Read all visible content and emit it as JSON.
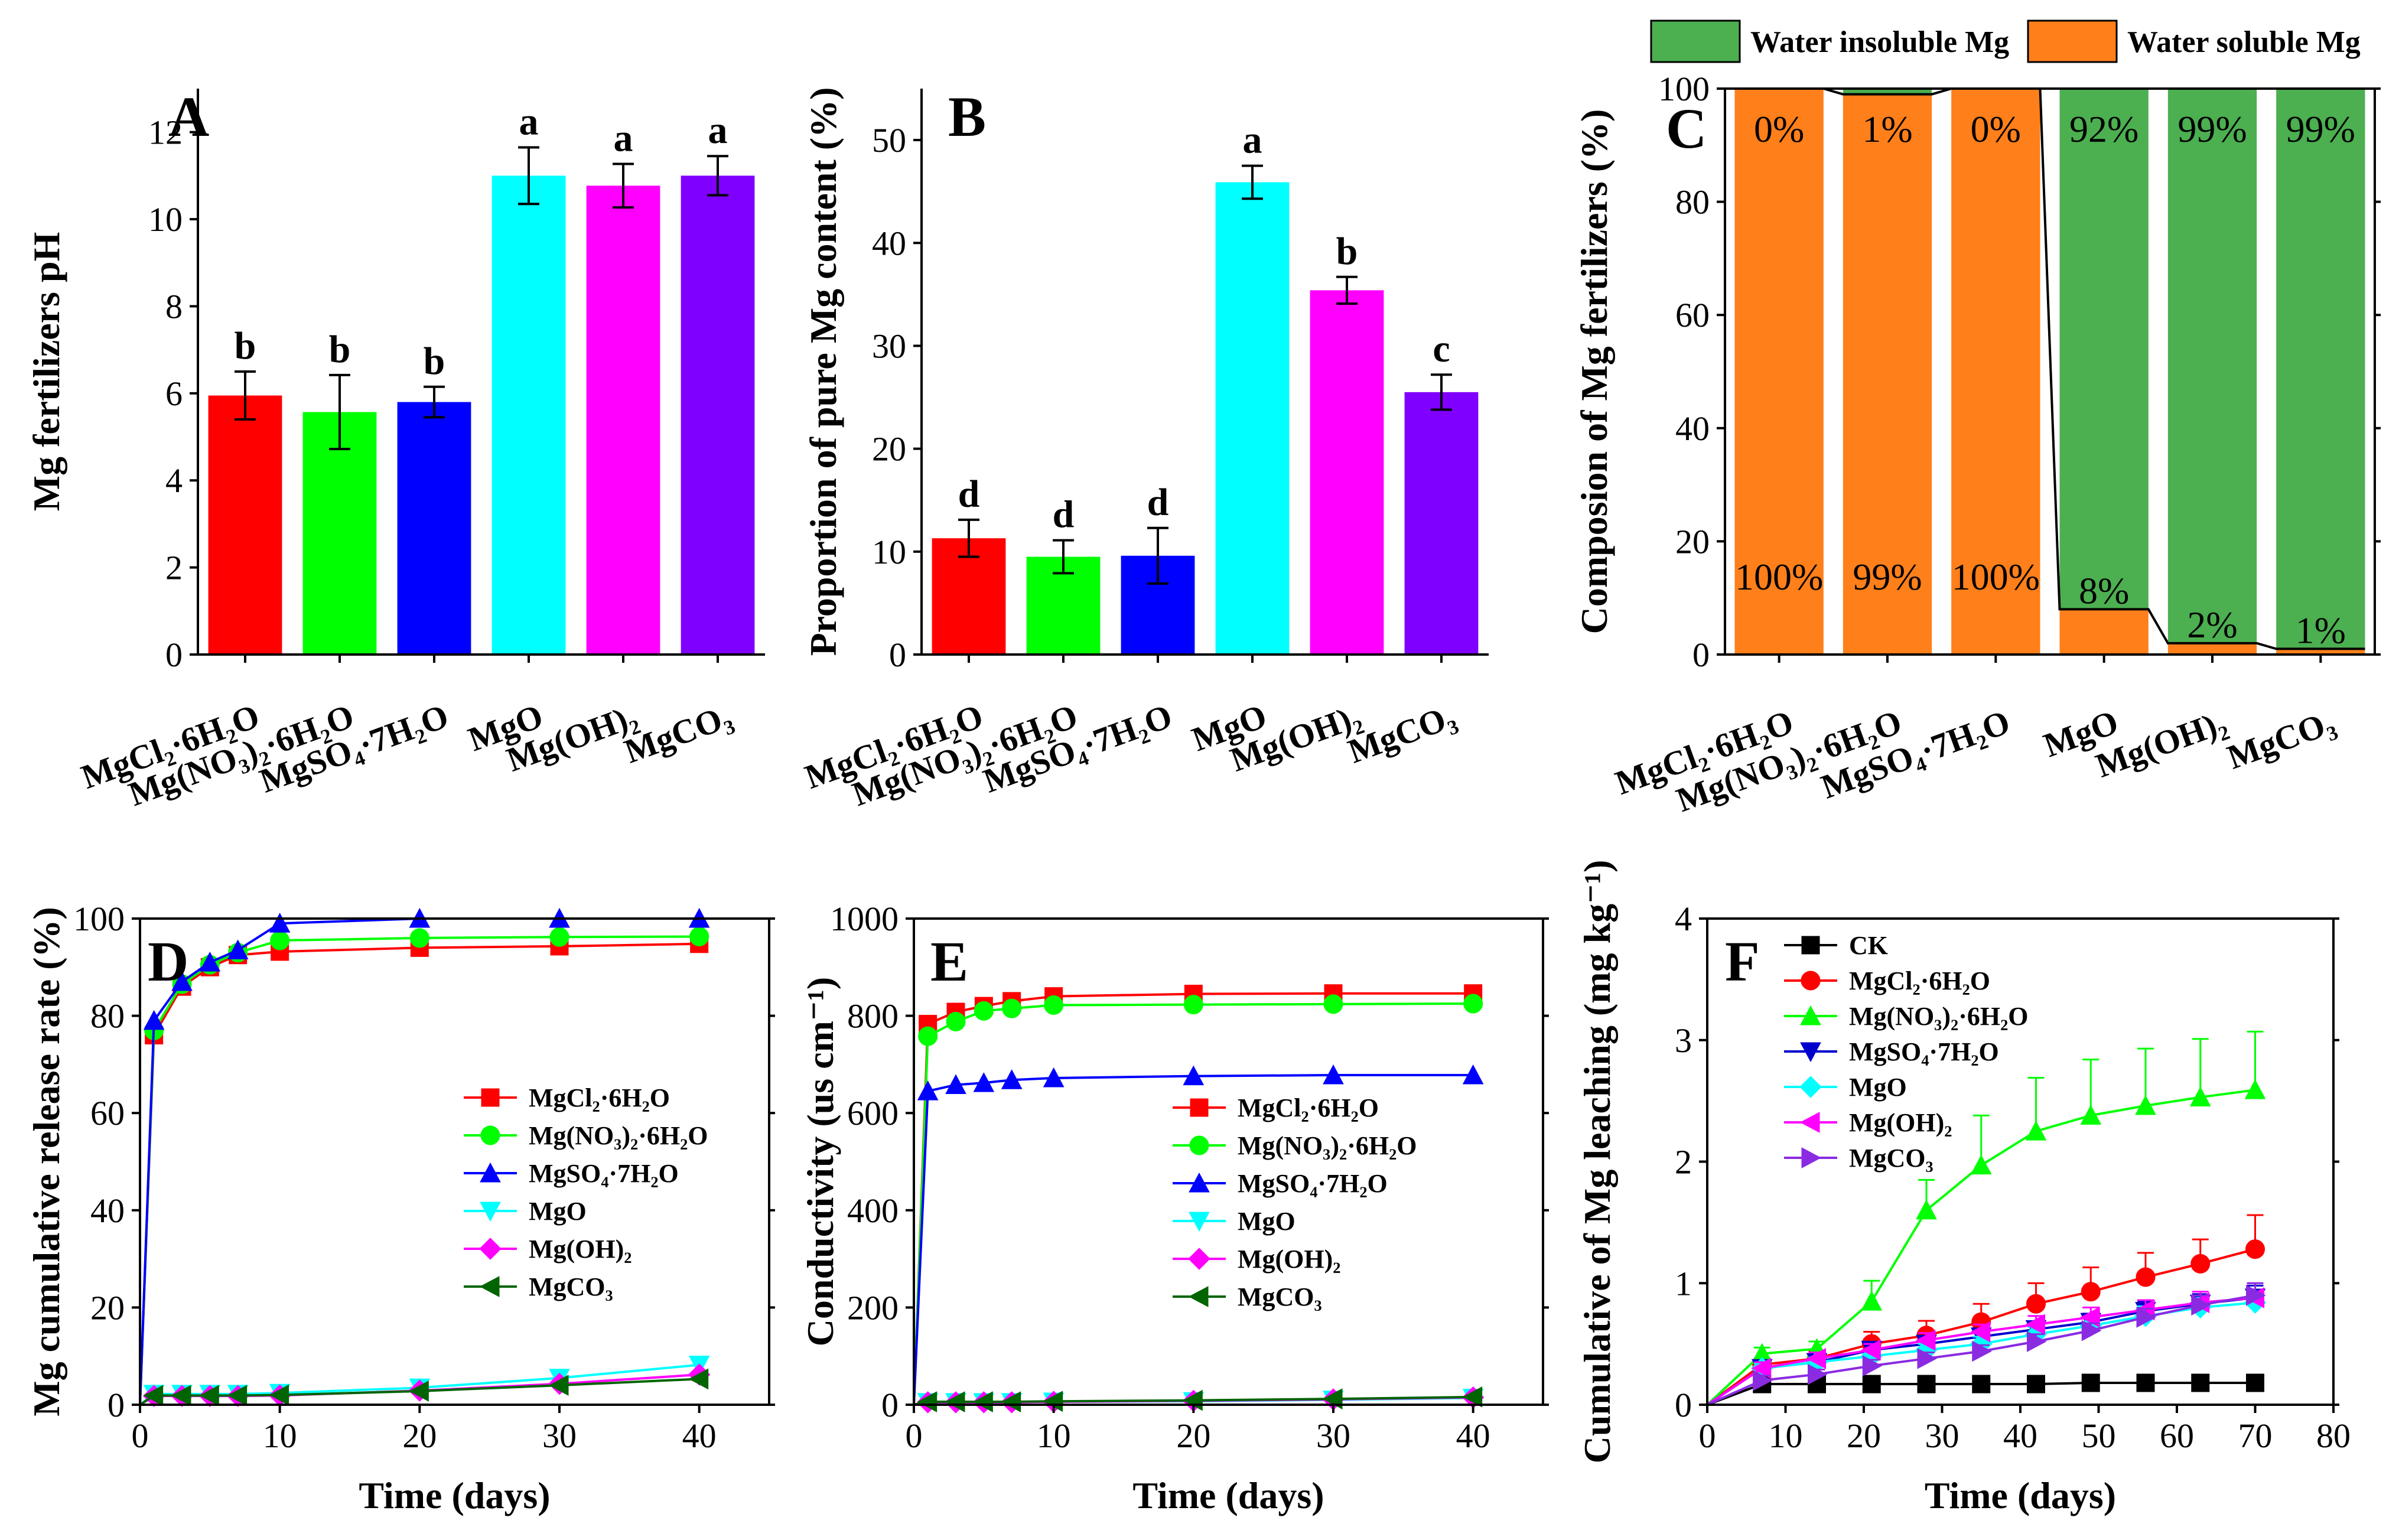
{
  "figure": {
    "legend_top": [
      "Water insoluble Mg",
      "Water soluble Mg"
    ],
    "colors": {
      "MgCl2": "#ff0000",
      "MgNO3": "#00ff00",
      "MgSO4": "#0000ff",
      "MgO": "#00ffff",
      "MgOH2": "#ff00ff",
      "MgCO3": "#8000ff",
      "CK": "#000000",
      "insoluble": "#4caf50",
      "soluble": "#ff7f1a"
    }
  },
  "chart_data": [
    {
      "panel": "A",
      "type": "bar",
      "categories": [
        "MgCl₂·6H₂O",
        "Mg(NO₃)₂·6H₂O",
        "MgSO₄·7H₂O",
        "MgO",
        "Mg(OH)₂",
        "MgCO₃"
      ],
      "values": [
        5.95,
        5.57,
        5.8,
        11.0,
        10.77,
        11.0
      ],
      "errors": [
        0.55,
        0.85,
        0.35,
        0.65,
        0.5,
        0.45
      ],
      "letters": [
        "b",
        "b",
        "b",
        "a",
        "a",
        "a"
      ],
      "ylabel": "Mg fertilizers pH",
      "ylim": [
        0,
        13
      ],
      "yticks": [
        0,
        2,
        4,
        6,
        8,
        10,
        12
      ]
    },
    {
      "panel": "B",
      "type": "bar",
      "categories": [
        "MgCl₂·6H₂O",
        "Mg(NO₃)₂·6H₂O",
        "MgSO₄·7H₂O",
        "MgO",
        "Mg(OH)₂",
        "MgCO₃"
      ],
      "values": [
        11.3,
        9.5,
        9.6,
        45.9,
        35.4,
        25.5
      ],
      "errors": [
        1.8,
        1.6,
        2.7,
        1.6,
        1.3,
        1.7
      ],
      "letters": [
        "d",
        "d",
        "d",
        "a",
        "b",
        "c"
      ],
      "ylabel": "Proportion  of pure Mg content (%)",
      "ylim": [
        0,
        55
      ],
      "yticks": [
        0,
        10,
        20,
        30,
        40,
        50
      ]
    },
    {
      "panel": "C",
      "type": "bar",
      "stacked": true,
      "categories": [
        "MgCl₂·6H₂O",
        "Mg(NO₃)₂·6H₂O",
        "MgSO₄·7H₂O",
        "MgO",
        "Mg(OH)₂",
        "MgCO₃"
      ],
      "series": [
        {
          "name": "Water soluble Mg",
          "values": [
            100,
            99,
            100,
            8,
            2,
            1
          ]
        },
        {
          "name": "Water insoluble Mg",
          "values": [
            0,
            1,
            0,
            92,
            99,
            99
          ]
        }
      ],
      "soluble_labels": [
        "100%",
        "99%",
        "100%",
        "8%",
        "2%",
        "1%"
      ],
      "insoluble_labels": [
        "0%",
        "1%",
        "0%",
        "92%",
        "99%",
        "99%"
      ],
      "ylabel": "Composion of Mg fertilizers (%)",
      "ylim": [
        0,
        100
      ],
      "yticks": [
        0,
        20,
        40,
        60,
        80,
        100
      ]
    },
    {
      "panel": "D",
      "type": "line",
      "xlabel": "Time (days)",
      "ylabel": "Mg cumulative release rate (%)",
      "xlim": [
        0,
        45
      ],
      "ylim": [
        0,
        100
      ],
      "xticks": [
        0,
        10,
        20,
        30,
        40
      ],
      "yticks": [
        0,
        20,
        40,
        60,
        80,
        100
      ],
      "x": [
        0,
        1,
        3,
        5,
        7,
        10,
        20,
        30,
        40
      ],
      "series": [
        {
          "name": "MgCl₂·6H₂O",
          "values": [
            0,
            76,
            86,
            90,
            92.5,
            93.2,
            94,
            94.3,
            94.8
          ]
        },
        {
          "name": "Mg(NO₃)₂·6H₂O",
          "values": [
            0,
            77,
            86.5,
            90.5,
            93,
            95.5,
            96,
            96.2,
            96.3
          ]
        },
        {
          "name": "MgSO₄·7H₂O",
          "values": [
            0,
            79,
            87,
            91,
            93.5,
            99,
            100,
            100,
            100
          ]
        },
        {
          "name": "MgO",
          "values": [
            0,
            2.2,
            2.2,
            2.2,
            2.2,
            2.4,
            3.5,
            5.5,
            8.2
          ]
        },
        {
          "name": "Mg(OH)₂",
          "values": [
            0,
            1.8,
            1.8,
            1.8,
            1.8,
            1.9,
            2.9,
            4.3,
            6.2
          ]
        },
        {
          "name": "MgCO₃",
          "values": [
            0,
            1.9,
            1.9,
            1.9,
            1.9,
            2.0,
            2.8,
            4.0,
            5.3
          ]
        }
      ]
    },
    {
      "panel": "E",
      "type": "line",
      "xlabel": "Time (days)",
      "ylabel": "Conductivity (us cm⁻¹)",
      "xlim": [
        0,
        45
      ],
      "ylim": [
        0,
        1000
      ],
      "xticks": [
        0,
        10,
        20,
        30,
        40
      ],
      "yticks": [
        0,
        200,
        400,
        600,
        800,
        1000
      ],
      "x": [
        0,
        1,
        3,
        5,
        7,
        10,
        20,
        30,
        40
      ],
      "series": [
        {
          "name": "MgCl₂·6H₂O",
          "values": [
            0,
            783,
            808,
            820,
            830,
            840,
            845,
            846,
            846
          ]
        },
        {
          "name": "Mg(NO₃)₂·6H₂O",
          "values": [
            0,
            758,
            788,
            810,
            815,
            822,
            823,
            824,
            825
          ]
        },
        {
          "name": "MgSO₄·7H₂O",
          "values": [
            0,
            645,
            658,
            662,
            668,
            672,
            676,
            678,
            678
          ]
        },
        {
          "name": "MgO",
          "values": [
            0,
            5,
            5,
            5,
            5,
            6,
            7,
            10,
            14
          ]
        },
        {
          "name": "Mg(OH)₂",
          "values": [
            0,
            5,
            5,
            5,
            5,
            6,
            8,
            11,
            15
          ]
        },
        {
          "name": "MgCO₃",
          "values": [
            0,
            6,
            6,
            6,
            6,
            7,
            9,
            12,
            16
          ]
        }
      ]
    },
    {
      "panel": "F",
      "type": "line",
      "xlabel": "Time (days)",
      "ylabel": "Cumulative of Mg leaching (mg kg⁻¹)",
      "xlim": [
        0,
        80
      ],
      "ylim": [
        0,
        4
      ],
      "xticks": [
        0,
        10,
        20,
        30,
        40,
        50,
        60,
        70,
        80
      ],
      "yticks": [
        0,
        1,
        2,
        3,
        4
      ],
      "x": [
        0,
        7,
        14,
        21,
        28,
        35,
        42,
        49,
        56,
        63,
        70
      ],
      "series": [
        {
          "name": "CK",
          "values": [
            0,
            0.17,
            0.17,
            0.17,
            0.17,
            0.17,
            0.17,
            0.18,
            0.18,
            0.18,
            0.18
          ],
          "errors": [
            0,
            0.02,
            0.02,
            0.02,
            0.02,
            0.02,
            0.02,
            0.02,
            0.02,
            0.02,
            0.02
          ]
        },
        {
          "name": "MgCl₂·6H₂O",
          "values": [
            0,
            0.33,
            0.38,
            0.5,
            0.57,
            0.68,
            0.83,
            0.93,
            1.05,
            1.16,
            1.28
          ],
          "errors": [
            0,
            0.05,
            0.06,
            0.1,
            0.12,
            0.15,
            0.17,
            0.2,
            0.2,
            0.2,
            0.28
          ]
        },
        {
          "name": "Mg(NO₃)₂·6H₂O",
          "values": [
            0,
            0.42,
            0.46,
            0.85,
            1.6,
            1.97,
            2.25,
            2.38,
            2.46,
            2.53,
            2.59
          ],
          "errors": [
            0,
            0.05,
            0.06,
            0.17,
            0.25,
            0.41,
            0.44,
            0.46,
            0.47,
            0.48,
            0.48
          ]
        },
        {
          "name": "MgSO₄·7H₂O",
          "values": [
            0,
            0.3,
            0.35,
            0.45,
            0.5,
            0.56,
            0.62,
            0.68,
            0.77,
            0.83,
            0.88
          ],
          "errors": [
            0,
            0.04,
            0.05,
            0.05,
            0.05,
            0.06,
            0.06,
            0.07,
            0.08,
            0.08,
            0.1
          ]
        },
        {
          "name": "MgO",
          "values": [
            0,
            0.3,
            0.35,
            0.4,
            0.45,
            0.5,
            0.58,
            0.65,
            0.73,
            0.8,
            0.84
          ],
          "errors": [
            0,
            0.04,
            0.04,
            0.05,
            0.05,
            0.06,
            0.06,
            0.07,
            0.08,
            0.08,
            0.08
          ]
        },
        {
          "name": "Mg(OH)₂",
          "values": [
            0,
            0.3,
            0.38,
            0.45,
            0.53,
            0.6,
            0.66,
            0.72,
            0.78,
            0.84,
            0.88
          ],
          "errors": [
            0,
            0.05,
            0.05,
            0.05,
            0.06,
            0.06,
            0.07,
            0.08,
            0.08,
            0.09,
            0.12
          ]
        },
        {
          "name": "MgCO₃",
          "values": [
            0,
            0.2,
            0.25,
            0.32,
            0.38,
            0.44,
            0.52,
            0.61,
            0.72,
            0.82,
            0.9
          ],
          "errors": [
            0,
            0.04,
            0.04,
            0.05,
            0.05,
            0.05,
            0.06,
            0.06,
            0.07,
            0.08,
            0.1
          ]
        }
      ]
    }
  ]
}
